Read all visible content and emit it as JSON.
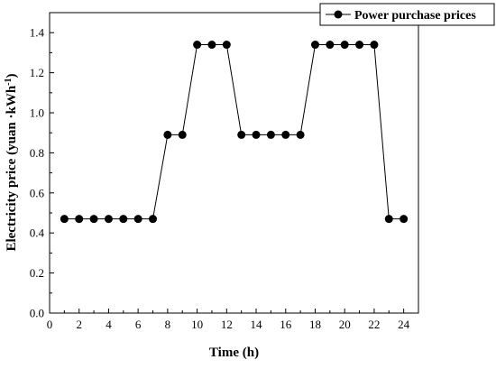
{
  "chart_data": {
    "type": "line",
    "xlabel": "Time (h)",
    "ylabel": {
      "main": "Electricity price (yuan ·kWh",
      "sup": "-1",
      "close": ")"
    },
    "xlim": [
      0,
      25
    ],
    "ylim": [
      0.0,
      1.5
    ],
    "xticks": [
      "0",
      "2",
      "4",
      "6",
      "8",
      "10",
      "12",
      "14",
      "16",
      "18",
      "20",
      "22",
      "24"
    ],
    "yticks": [
      "0.0",
      "0.2",
      "0.4",
      "0.6",
      "0.8",
      "1.0",
      "1.2",
      "1.4"
    ],
    "legend_position": "top-right",
    "grid": false,
    "series": [
      {
        "name": "Power purchase prices",
        "color": "#000000",
        "marker": "filled-circle",
        "x": [
          1,
          2,
          3,
          4,
          5,
          6,
          7,
          8,
          9,
          10,
          11,
          12,
          13,
          14,
          15,
          16,
          17,
          18,
          19,
          20,
          21,
          22,
          23,
          24
        ],
        "y": [
          0.47,
          0.47,
          0.47,
          0.47,
          0.47,
          0.47,
          0.47,
          0.89,
          0.89,
          1.34,
          1.34,
          1.34,
          0.89,
          0.89,
          0.89,
          0.89,
          0.89,
          1.34,
          1.34,
          1.34,
          1.34,
          1.34,
          0.47,
          0.47
        ]
      }
    ]
  }
}
